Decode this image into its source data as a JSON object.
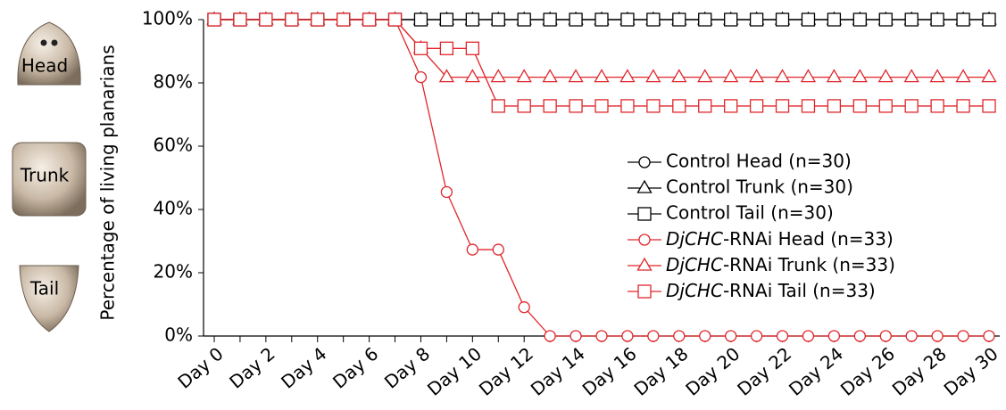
{
  "chart_data": {
    "type": "line",
    "y_label": "Percentage of  living planarians",
    "annotations": [
      "Head",
      "Trunk",
      "Tail"
    ],
    "categories": [
      "Day 0",
      null,
      "Day 2",
      null,
      "Day 4",
      null,
      "Day 6",
      null,
      "Day 8",
      null,
      "Day 10",
      null,
      "Day 12",
      null,
      "Day 14",
      null,
      "Day 16",
      null,
      "Day 18",
      null,
      "Day 20",
      null,
      "Day 22",
      null,
      "Day 24",
      null,
      "Day 26",
      null,
      "Day 28",
      null,
      "Day 30"
    ],
    "ylim": [
      0,
      100
    ],
    "yticks": [
      {
        "value": 0,
        "label": "0%"
      },
      {
        "value": 20,
        "label": "20%"
      },
      {
        "value": 40,
        "label": "40%"
      },
      {
        "value": 60,
        "label": "60%"
      },
      {
        "value": 80,
        "label": "80%"
      },
      {
        "value": 100,
        "label": "100%"
      }
    ],
    "series": [
      {
        "name": "Control Head (n=30)",
        "color": "#000000",
        "marker": "circle",
        "values": [
          100,
          100,
          100,
          100,
          100,
          100,
          100,
          100,
          100,
          100,
          100,
          100,
          100,
          100,
          100,
          100,
          100,
          100,
          100,
          100,
          100,
          100,
          100,
          100,
          100,
          100,
          100,
          100,
          100,
          100,
          100
        ]
      },
      {
        "name": "Control Trunk (n=30)",
        "color": "#000000",
        "marker": "triangle",
        "values": [
          100,
          100,
          100,
          100,
          100,
          100,
          100,
          100,
          100,
          100,
          100,
          100,
          100,
          100,
          100,
          100,
          100,
          100,
          100,
          100,
          100,
          100,
          100,
          100,
          100,
          100,
          100,
          100,
          100,
          100,
          100
        ]
      },
      {
        "name": "Control Tail (n=30)",
        "color": "#000000",
        "marker": "square",
        "values": [
          100,
          100,
          100,
          100,
          100,
          100,
          100,
          100,
          100,
          100,
          100,
          100,
          100,
          100,
          100,
          100,
          100,
          100,
          100,
          100,
          100,
          100,
          100,
          100,
          100,
          100,
          100,
          100,
          100,
          100,
          100
        ]
      },
      {
        "name": "DjCHC-RNAi Head (n=33)",
        "color": "#e0262b",
        "marker": "circle",
        "values": [
          100,
          100,
          100,
          100,
          100,
          100,
          100,
          100,
          81.8,
          45.5,
          27.3,
          27.3,
          9.1,
          0,
          0,
          0,
          0,
          0,
          0,
          0,
          0,
          0,
          0,
          0,
          0,
          0,
          0,
          0,
          0,
          0,
          0
        ]
      },
      {
        "name": "DjCHC-RNAi Trunk (n=33)",
        "color": "#e0262b",
        "marker": "triangle",
        "values": [
          100,
          100,
          100,
          100,
          100,
          100,
          100,
          100,
          90.9,
          81.8,
          81.8,
          81.8,
          81.8,
          81.8,
          81.8,
          81.8,
          81.8,
          81.8,
          81.8,
          81.8,
          81.8,
          81.8,
          81.8,
          81.8,
          81.8,
          81.8,
          81.8,
          81.8,
          81.8,
          81.8,
          81.8
        ]
      },
      {
        "name": "DjCHC-RNAi Tail (n=33)",
        "color": "#e0262b",
        "marker": "square",
        "values": [
          100,
          100,
          100,
          100,
          100,
          100,
          100,
          100,
          90.9,
          90.9,
          90.9,
          72.7,
          72.7,
          72.7,
          72.7,
          72.7,
          72.7,
          72.7,
          72.7,
          72.7,
          72.7,
          72.7,
          72.7,
          72.7,
          72.7,
          72.7,
          72.7,
          72.7,
          72.7,
          72.7,
          72.7
        ]
      }
    ]
  }
}
